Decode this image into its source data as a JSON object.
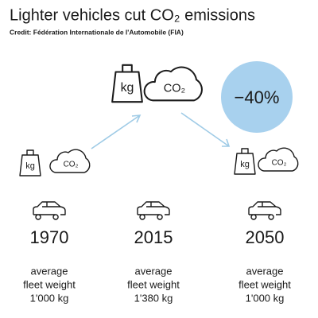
{
  "header": {
    "title": "Lighter vehicles cut CO₂ emissions",
    "credit": "Credit: Fédération Internationale de l'Automobile (FIA)"
  },
  "badge": "−40%",
  "columns": [
    {
      "weight_icon": "kg",
      "cloud_icon": "CO₂",
      "year": "1970",
      "lines": [
        "average",
        "fleet weight",
        "1'000 kg"
      ]
    },
    {
      "weight_icon": "kg",
      "cloud_icon": "CO₂",
      "year": "2015",
      "lines": [
        "average",
        "fleet weight",
        "1'380 kg"
      ]
    },
    {
      "weight_icon": "kg",
      "cloud_icon": "CO₂",
      "year": "2050",
      "lines": [
        "average",
        "fleet weight",
        "1'000 kg"
      ]
    }
  ]
}
